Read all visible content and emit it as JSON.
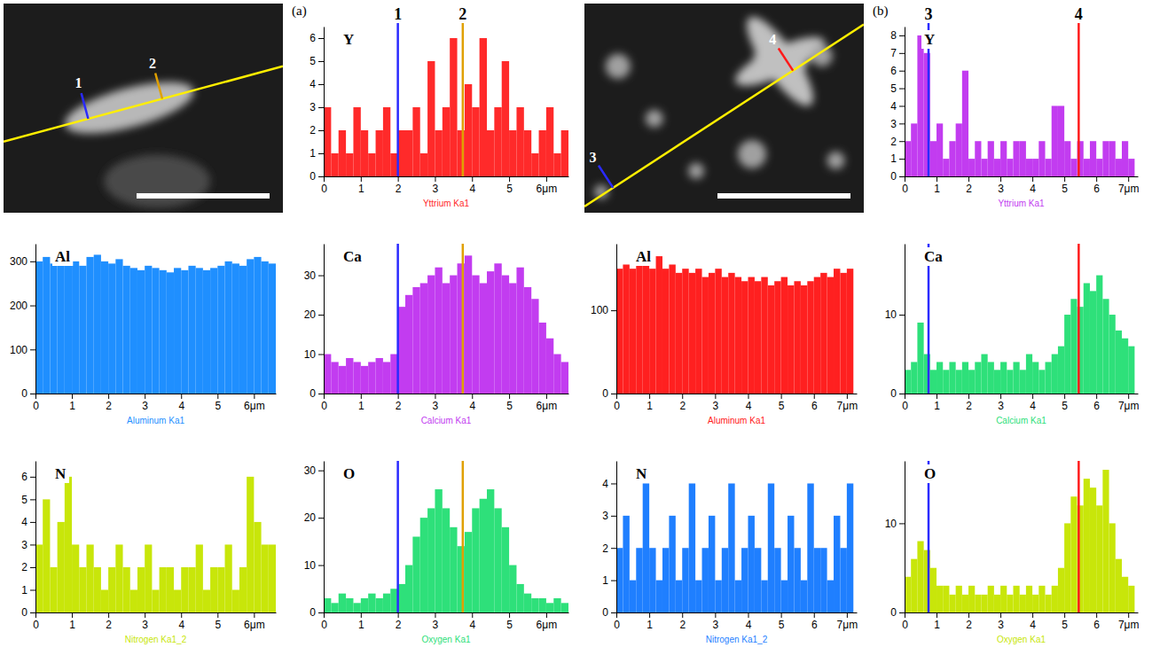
{
  "chart_data": [
    {
      "type": "histogram",
      "title": "Y",
      "x_label": "Yttrium Ka1",
      "color": "#ff2a2a",
      "bins": [
        0,
        0.2,
        0.4,
        0.6,
        0.8,
        1,
        1.2,
        1.4,
        1.6,
        1.8,
        2,
        2.2,
        2.4,
        2.6,
        2.8,
        3,
        3.2,
        3.4,
        3.6,
        3.8,
        4,
        4.2,
        4.4,
        4.6,
        4.8,
        5,
        5.2,
        5.4,
        5.6,
        5.8,
        6,
        6.2,
        6.4,
        6.6
      ],
      "values": [
        3,
        1,
        2,
        1,
        3,
        2,
        1,
        2,
        3,
        1,
        2,
        2,
        3,
        1,
        5,
        2,
        3,
        6,
        2,
        4,
        3,
        6,
        2,
        3,
        5,
        2,
        3,
        2,
        1,
        2,
        3,
        1,
        2
      ],
      "xlim": [
        0,
        6.6
      ],
      "xticks": [
        0,
        1,
        2,
        3,
        4,
        5,
        {
          "value": 6,
          "label": "6μm"
        }
      ],
      "ylim": [
        0,
        6.5
      ],
      "yticks": [
        0,
        1,
        2,
        3,
        4,
        5,
        6
      ]
    },
    {
      "type": "histogram",
      "title": "Al",
      "x_label": "Aluminum Ka1",
      "color": "#1f8fff",
      "bins": [
        0,
        0.2,
        0.4,
        0.6,
        0.8,
        1,
        1.2,
        1.4,
        1.6,
        1.8,
        2,
        2.2,
        2.4,
        2.6,
        2.8,
        3,
        3.2,
        3.4,
        3.6,
        3.8,
        4,
        4.2,
        4.4,
        4.6,
        4.8,
        5,
        5.2,
        5.4,
        5.6,
        5.8,
        6,
        6.2,
        6.4,
        6.6
      ],
      "values": [
        300,
        310,
        295,
        305,
        320,
        300,
        290,
        310,
        315,
        300,
        295,
        305,
        290,
        285,
        280,
        290,
        285,
        280,
        275,
        285,
        280,
        290,
        285,
        280,
        285,
        290,
        300,
        295,
        290,
        305,
        310,
        300,
        295
      ],
      "xlim": [
        0,
        6.6
      ],
      "xticks": [
        0,
        1,
        2,
        3,
        4,
        5,
        {
          "value": 6,
          "label": "6μm"
        }
      ],
      "ylim": [
        0,
        340
      ],
      "yticks": [
        0,
        100,
        200,
        300
      ]
    },
    {
      "type": "histogram",
      "title": "Ca",
      "x_label": "Calcium Ka1",
      "color": "#c23cf0",
      "bins": [
        0,
        0.2,
        0.4,
        0.6,
        0.8,
        1,
        1.2,
        1.4,
        1.6,
        1.8,
        2,
        2.2,
        2.4,
        2.6,
        2.8,
        3,
        3.2,
        3.4,
        3.6,
        3.8,
        4,
        4.2,
        4.4,
        4.6,
        4.8,
        5,
        5.2,
        5.4,
        5.6,
        5.8,
        6,
        6.2,
        6.4,
        6.6
      ],
      "values": [
        10,
        8,
        7,
        9,
        8,
        7,
        8,
        9,
        8,
        10,
        22,
        25,
        27,
        28,
        30,
        32,
        28,
        30,
        33,
        35,
        30,
        28,
        31,
        33,
        30,
        28,
        32,
        27,
        24,
        18,
        14,
        10,
        8
      ],
      "xlim": [
        0,
        6.6
      ],
      "xticks": [
        0,
        1,
        2,
        3,
        4,
        5,
        {
          "value": 6,
          "label": "6μm"
        }
      ],
      "ylim": [
        0,
        38
      ],
      "yticks": [
        0,
        10,
        20,
        30
      ]
    },
    {
      "type": "histogram",
      "title": "N",
      "x_label": "Nitrogen Ka1_2",
      "color": "#c8e60a",
      "bins": [
        0,
        0.2,
        0.4,
        0.6,
        0.8,
        1,
        1.2,
        1.4,
        1.6,
        1.8,
        2,
        2.2,
        2.4,
        2.6,
        2.8,
        3,
        3.2,
        3.4,
        3.6,
        3.8,
        4,
        4.2,
        4.4,
        4.6,
        4.8,
        5,
        5.2,
        5.4,
        5.6,
        5.8,
        6,
        6.2,
        6.4,
        6.6
      ],
      "values": [
        3,
        5,
        2,
        4,
        6,
        3,
        2,
        3,
        2,
        1,
        2,
        3,
        2,
        1,
        2,
        3,
        1,
        2,
        2,
        1,
        2,
        2,
        3,
        1,
        2,
        2,
        3,
        1,
        2,
        6,
        4,
        3,
        3
      ],
      "xlim": [
        0,
        6.6
      ],
      "xticks": [
        0,
        1,
        2,
        3,
        4,
        5,
        {
          "value": 6,
          "label": "6μm"
        }
      ],
      "ylim": [
        0,
        6.7
      ],
      "yticks": [
        0,
        1,
        2,
        3,
        4,
        5,
        6
      ]
    },
    {
      "type": "histogram",
      "title": "O",
      "x_label": "Oxygen Ka1",
      "color": "#2ee07a",
      "bins": [
        0,
        0.2,
        0.4,
        0.6,
        0.8,
        1,
        1.2,
        1.4,
        1.6,
        1.8,
        2,
        2.2,
        2.4,
        2.6,
        2.8,
        3,
        3.2,
        3.4,
        3.6,
        3.8,
        4,
        4.2,
        4.4,
        4.6,
        4.8,
        5,
        5.2,
        5.4,
        5.6,
        5.8,
        6,
        6.2,
        6.4,
        6.6
      ],
      "values": [
        3,
        2,
        4,
        3,
        2,
        3,
        4,
        3,
        4,
        5,
        6,
        10,
        16,
        20,
        22,
        26,
        22,
        18,
        14,
        17,
        22,
        24,
        26,
        22,
        18,
        10,
        6,
        4,
        3,
        3,
        2,
        3,
        2
      ],
      "xlim": [
        0,
        6.6
      ],
      "xticks": [
        0,
        1,
        2,
        3,
        4,
        5,
        {
          "value": 6,
          "label": "6μm"
        }
      ],
      "ylim": [
        0,
        32
      ],
      "yticks": [
        0,
        10,
        20,
        30
      ]
    },
    {
      "type": "histogram",
      "title": "Y",
      "x_label": "Yttrium Ka1",
      "color": "#c23cf0",
      "bins": [
        0,
        0.2,
        0.4,
        0.6,
        0.8,
        1,
        1.2,
        1.4,
        1.6,
        1.8,
        2,
        2.2,
        2.4,
        2.6,
        2.8,
        3,
        3.2,
        3.4,
        3.6,
        3.8,
        4,
        4.2,
        4.4,
        4.6,
        4.8,
        5,
        5.2,
        5.4,
        5.6,
        5.8,
        6,
        6.2,
        6.4,
        6.6,
        6.8,
        7,
        7.2
      ],
      "values": [
        2,
        3,
        8,
        7,
        2,
        3,
        1,
        2,
        3,
        6,
        1,
        2,
        1,
        2,
        1,
        2,
        1,
        2,
        2,
        1,
        1,
        2,
        1,
        4,
        4,
        2,
        1,
        2,
        1,
        2,
        1,
        2,
        2,
        1,
        2,
        1
      ],
      "xlim": [
        0,
        7.3
      ],
      "xticks": [
        0,
        1,
        2,
        3,
        4,
        5,
        6,
        {
          "value": 7,
          "label": "7μm"
        }
      ],
      "ylim": [
        0,
        8.5
      ],
      "yticks": [
        0,
        1,
        2,
        3,
        4,
        5,
        6,
        7,
        8
      ]
    },
    {
      "type": "histogram",
      "title": "Al",
      "x_label": "Aluminum Ka1",
      "color": "#ff2020",
      "bins": [
        0,
        0.2,
        0.4,
        0.6,
        0.8,
        1,
        1.2,
        1.4,
        1.6,
        1.8,
        2,
        2.2,
        2.4,
        2.6,
        2.8,
        3,
        3.2,
        3.4,
        3.6,
        3.8,
        4,
        4.2,
        4.4,
        4.6,
        4.8,
        5,
        5.2,
        5.4,
        5.6,
        5.8,
        6,
        6.2,
        6.4,
        6.6,
        6.8,
        7,
        7.2
      ],
      "values": [
        150,
        155,
        150,
        160,
        155,
        150,
        165,
        150,
        155,
        145,
        150,
        145,
        150,
        140,
        145,
        150,
        140,
        145,
        140,
        135,
        140,
        135,
        140,
        130,
        135,
        140,
        130,
        135,
        130,
        135,
        140,
        145,
        140,
        150,
        145,
        150
      ],
      "xlim": [
        0,
        7.3
      ],
      "xticks": [
        0,
        1,
        2,
        3,
        4,
        5,
        6,
        {
          "value": 7,
          "label": "7μm"
        }
      ],
      "ylim": [
        0,
        180
      ],
      "yticks": [
        0,
        100
      ]
    },
    {
      "type": "histogram",
      "title": "Ca",
      "x_label": "Calcium Ka1",
      "color": "#2ee07a",
      "bins": [
        0,
        0.2,
        0.4,
        0.6,
        0.8,
        1,
        1.2,
        1.4,
        1.6,
        1.8,
        2,
        2.2,
        2.4,
        2.6,
        2.8,
        3,
        3.2,
        3.4,
        3.6,
        3.8,
        4,
        4.2,
        4.4,
        4.6,
        4.8,
        5,
        5.2,
        5.4,
        5.6,
        5.8,
        6,
        6.2,
        6.4,
        6.6,
        6.8,
        7,
        7.2
      ],
      "values": [
        3,
        4,
        9,
        5,
        3,
        4,
        3,
        4,
        3,
        4,
        3,
        4,
        5,
        4,
        3,
        4,
        3,
        4,
        3,
        5,
        4,
        3,
        4,
        5,
        6,
        10,
        12,
        11,
        14,
        13,
        15,
        12,
        10,
        8,
        7,
        6
      ],
      "xlim": [
        0,
        7.3
      ],
      "xticks": [
        0,
        1,
        2,
        3,
        4,
        5,
        6,
        {
          "value": 7,
          "label": "7μm"
        }
      ],
      "ylim": [
        0,
        19
      ],
      "yticks": [
        0,
        10
      ]
    },
    {
      "type": "histogram",
      "title": "N",
      "x_label": "Nitrogen Ka1_2",
      "color": "#1f7fff",
      "bins": [
        0,
        0.2,
        0.4,
        0.6,
        0.8,
        1,
        1.2,
        1.4,
        1.6,
        1.8,
        2,
        2.2,
        2.4,
        2.6,
        2.8,
        3,
        3.2,
        3.4,
        3.6,
        3.8,
        4,
        4.2,
        4.4,
        4.6,
        4.8,
        5,
        5.2,
        5.4,
        5.6,
        5.8,
        6,
        6.2,
        6.4,
        6.6,
        6.8,
        7,
        7.2
      ],
      "values": [
        2,
        3,
        1,
        2,
        4,
        2,
        1,
        2,
        3,
        1,
        2,
        4,
        1,
        2,
        3,
        1,
        2,
        4,
        1,
        2,
        3,
        2,
        1,
        4,
        2,
        1,
        3,
        2,
        1,
        4,
        2,
        2,
        1,
        3,
        2,
        4
      ],
      "xlim": [
        0,
        7.3
      ],
      "xticks": [
        0,
        1,
        2,
        3,
        4,
        5,
        6,
        {
          "value": 7,
          "label": "7μm"
        }
      ],
      "ylim": [
        0,
        4.7
      ],
      "yticks": [
        0,
        1,
        2,
        3,
        4
      ]
    },
    {
      "type": "histogram",
      "title": "O",
      "x_label": "Oxygen Ka1",
      "color": "#c8e60a",
      "bins": [
        0,
        0.2,
        0.4,
        0.6,
        0.8,
        1,
        1.2,
        1.4,
        1.6,
        1.8,
        2,
        2.2,
        2.4,
        2.6,
        2.8,
        3,
        3.2,
        3.4,
        3.6,
        3.8,
        4,
        4.2,
        4.4,
        4.6,
        4.8,
        5,
        5.2,
        5.4,
        5.6,
        5.8,
        6,
        6.2,
        6.4,
        6.6,
        6.8,
        7,
        7.2
      ],
      "values": [
        4,
        6,
        8,
        7,
        5,
        3,
        3,
        2,
        3,
        2,
        3,
        2,
        2,
        3,
        2,
        3,
        2,
        3,
        2,
        3,
        2,
        3,
        2,
        3,
        5,
        10,
        13,
        12,
        15,
        14,
        12,
        16,
        10,
        6,
        4,
        3
      ],
      "xlim": [
        0,
        7.3
      ],
      "xticks": [
        0,
        1,
        2,
        3,
        4,
        5,
        6,
        {
          "value": 7,
          "label": "7μm"
        }
      ],
      "ylim": [
        0,
        17
      ],
      "yticks": [
        0,
        10
      ]
    }
  ],
  "panels": [
    {
      "label": "(a)",
      "markers": [
        {
          "label": "1",
          "x": 2.0,
          "color": "#2a2aff"
        },
        {
          "label": "2",
          "x": 3.75,
          "color": "#e0a000"
        }
      ]
    },
    {
      "label": "(b)",
      "markers": [
        {
          "label": "3",
          "x": 0.75,
          "color": "#2a2aff"
        },
        {
          "label": "4",
          "x": 5.45,
          "color": "#ff1a1a"
        }
      ]
    }
  ]
}
